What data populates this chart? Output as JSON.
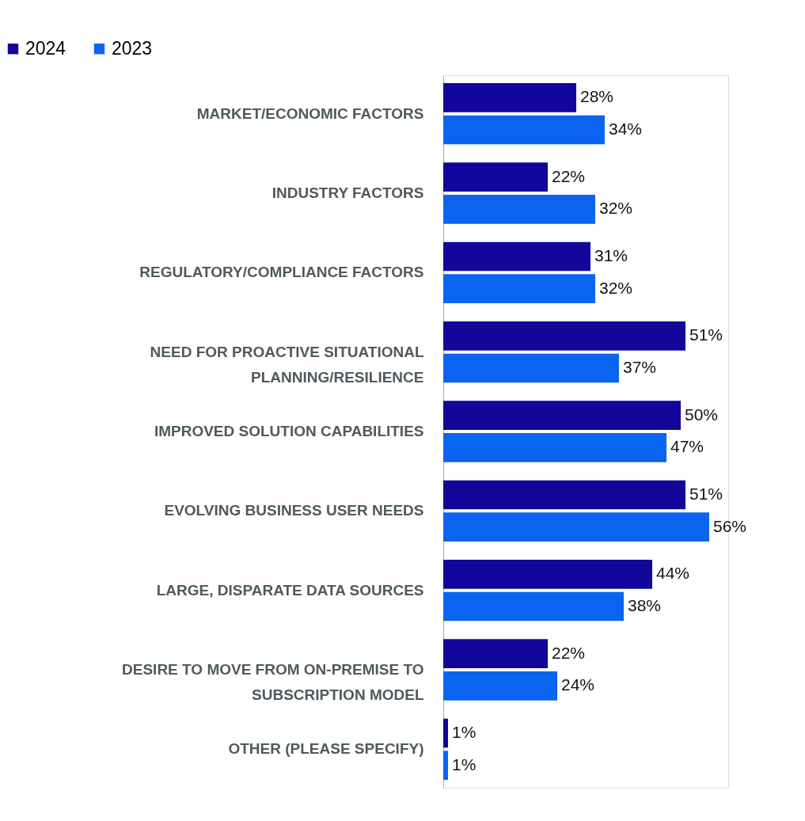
{
  "chart_data": {
    "type": "bar",
    "orientation": "horizontal",
    "data_labels": true,
    "legend": "top left",
    "categories": [
      "MARKET/ECONOMIC FACTORS",
      "INDUSTRY FACTORS",
      "REGULATORY/COMPLIANCE FACTORS",
      "NEED FOR PROACTIVE SITUATIONAL PLANNING/RESILIENCE",
      "IMPROVED SOLUTION CAPABILITIES",
      "EVOLVING BUSINESS USER NEEDS",
      "LARGE, DISPARATE DATA SOURCES",
      "DESIRE TO MOVE FROM ON-PREMISE TO SUBSCRIPTION MODEL",
      "OTHER (PLEASE SPECIFY)"
    ],
    "series": [
      {
        "name": "2024",
        "color": "#12069b",
        "values": [
          28,
          22,
          31,
          51,
          50,
          51,
          44,
          22,
          1
        ],
        "value_labels": [
          "28%",
          "22%",
          "31%",
          "51%",
          "50%",
          "51%",
          "44%",
          "22%",
          "1%"
        ]
      },
      {
        "name": "2023",
        "color": "#0a64f0",
        "values": [
          34,
          32,
          32,
          37,
          47,
          56,
          38,
          24,
          1
        ],
        "value_labels": [
          "34%",
          "32%",
          "32%",
          "37%",
          "47%",
          "56%",
          "38%",
          "24%",
          "1%"
        ]
      }
    ]
  }
}
